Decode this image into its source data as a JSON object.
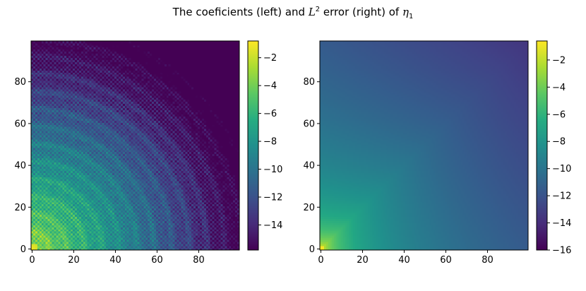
{
  "title": {
    "prefix": "The coeficients (left) and ",
    "lsym": "L",
    "lexp": "2",
    "middle": " error (right) of ",
    "eta": "η",
    "eta_sub": "1"
  },
  "chart_data": [
    {
      "type": "heatmap",
      "id": "left",
      "title": "",
      "xlabel": "",
      "ylabel": "",
      "xlim": [
        0,
        99
      ],
      "ylim": [
        0,
        99
      ],
      "xticks": [
        0,
        20,
        40,
        60,
        80
      ],
      "yticks": [
        0,
        20,
        40,
        60,
        80
      ],
      "grid": false,
      "description": "",
      "colormap": "viridis",
      "colorbar": {
        "ticks": [
          -2,
          -4,
          -6,
          -8,
          -10,
          -12,
          -14
        ],
        "range": [
          -15.8,
          -0.8
        ]
      },
      "pattern": "quarter_rings_from_origin"
    },
    {
      "type": "heatmap",
      "id": "right",
      "title": "",
      "xlabel": "",
      "ylabel": "",
      "xlim": [
        0,
        99
      ],
      "ylim": [
        0,
        99
      ],
      "xticks": [
        0,
        20,
        40,
        60,
        80
      ],
      "yticks": [
        0,
        20,
        40,
        60,
        80
      ],
      "grid": false,
      "colormap": "viridis",
      "colorbar": {
        "ticks": [
          -2,
          -4,
          -6,
          -8,
          -10,
          -12,
          -14,
          -16
        ],
        "range": [
          -16,
          -0.6
        ]
      },
      "pattern": "max_index_decay"
    }
  ]
}
